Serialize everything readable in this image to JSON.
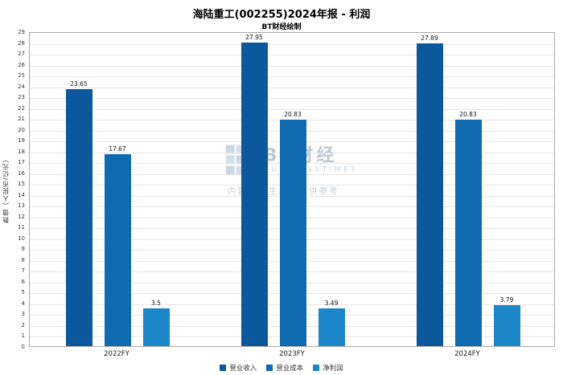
{
  "title": "海陆重工(002255)2024年报 - 利润",
  "subtitle": "BT财经绘制",
  "watermark": {
    "brand": "BT财经",
    "brand_sub": "BUSINESSTIMES",
    "note": "内容由AI生成，仅供参考"
  },
  "chart_data": {
    "type": "bar",
    "title": "海陆重工(002255)2024年报 - 利润",
    "categories": [
      "2022FY",
      "2023FY",
      "2024FY"
    ],
    "series": [
      {
        "name": "营业收入",
        "color": "#0b589c",
        "values": [
          23.65,
          27.95,
          27.89
        ]
      },
      {
        "name": "营业成本",
        "color": "#0f6ab0",
        "values": [
          17.67,
          20.83,
          20.83
        ]
      },
      {
        "name": "净利润",
        "color": "#1b87c8",
        "values": [
          3.5,
          3.49,
          3.79
        ]
      }
    ],
    "xlabel": "",
    "ylabel": "数值（人民币/亿元）",
    "ylim": [
      0,
      29
    ],
    "ytick_step": 1,
    "grid": true,
    "legend_position": "bottom"
  }
}
